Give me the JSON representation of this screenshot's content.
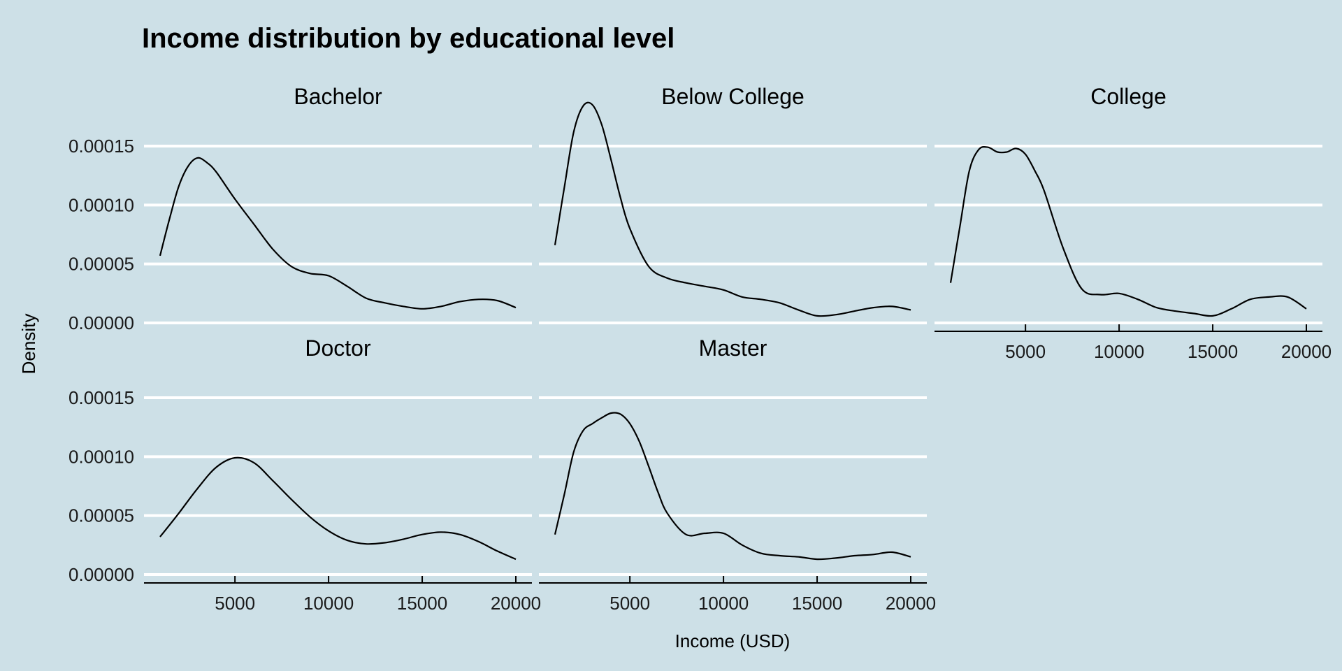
{
  "chart_data": {
    "type": "area",
    "title": "Income distribution by educational level",
    "xlabel": "Income (USD)",
    "ylabel": "Density",
    "background": "#cde0e7",
    "gridline_color": "#ffffff",
    "line_color": "#000000",
    "grid": "horizontal",
    "xlim": [
      1000,
      20000
    ],
    "ylim": [
      0,
      0.000185
    ],
    "x_ticks": [
      5000,
      10000,
      15000,
      20000
    ],
    "y_ticks": [
      0,
      5e-05,
      0.0001,
      0.00015
    ],
    "y_tick_labels": [
      "0.00000",
      "0.00005",
      "0.00010",
      "0.00015"
    ],
    "x_tick_labels": [
      "5000",
      "10000",
      "15000",
      "20000"
    ],
    "panels": [
      {
        "name": "Bachelor",
        "x": [
          1000,
          1500,
          2000,
          2500,
          3000,
          3500,
          4000,
          5000,
          6000,
          7000,
          8000,
          9000,
          10000,
          11000,
          12000,
          13000,
          14000,
          15000,
          16000,
          17000,
          18000,
          19000,
          20000
        ],
        "y": [
          5.7e-05,
          8.8e-05,
          0.000116,
          0.000133,
          0.00014,
          0.000136,
          0.000128,
          0.000105,
          8.4e-05,
          6.3e-05,
          4.8e-05,
          4.2e-05,
          4e-05,
          3.1e-05,
          2.1e-05,
          1.7e-05,
          1.4e-05,
          1.2e-05,
          1.4e-05,
          1.8e-05,
          2e-05,
          1.9e-05,
          1.3e-05
        ]
      },
      {
        "name": "Below College",
        "x": [
          1000,
          1500,
          2000,
          2500,
          3000,
          3500,
          4000,
          4500,
          5000,
          6000,
          7000,
          8000,
          9000,
          10000,
          11000,
          12000,
          13000,
          14000,
          15000,
          16000,
          17000,
          18000,
          19000,
          20000
        ],
        "y": [
          6.6e-05,
          0.000115,
          0.000162,
          0.000184,
          0.000185,
          0.000168,
          0.000138,
          0.000106,
          8e-05,
          4.8e-05,
          3.8e-05,
          3.4e-05,
          3.1e-05,
          2.8e-05,
          2.2e-05,
          2e-05,
          1.7e-05,
          1.1e-05,
          6e-06,
          7e-06,
          1e-05,
          1.3e-05,
          1.4e-05,
          1.1e-05
        ]
      },
      {
        "name": "College",
        "x": [
          1000,
          1500,
          2000,
          2500,
          3000,
          3500,
          4000,
          4500,
          5000,
          5500,
          6000,
          7000,
          8000,
          9000,
          10000,
          11000,
          12000,
          13000,
          14000,
          15000,
          16000,
          17000,
          18000,
          19000,
          20000
        ],
        "y": [
          3.4e-05,
          8.2e-05,
          0.000129,
          0.000147,
          0.000149,
          0.000145,
          0.000145,
          0.000148,
          0.000143,
          0.000129,
          0.000112,
          6.4e-05,
          2.9e-05,
          2.4e-05,
          2.5e-05,
          2e-05,
          1.3e-05,
          1e-05,
          8e-06,
          6e-06,
          1.2e-05,
          2e-05,
          2.2e-05,
          2.2e-05,
          1.2e-05
        ]
      },
      {
        "name": "Doctor",
        "x": [
          1000,
          2000,
          3000,
          4000,
          5000,
          6000,
          7000,
          8000,
          9000,
          10000,
          11000,
          12000,
          13000,
          14000,
          15000,
          16000,
          17000,
          18000,
          19000,
          20000
        ],
        "y": [
          3.2e-05,
          5.2e-05,
          7.3e-05,
          9.1e-05,
          9.9e-05,
          9.5e-05,
          8e-05,
          6.4e-05,
          4.9e-05,
          3.7e-05,
          2.9e-05,
          2.6e-05,
          2.7e-05,
          3e-05,
          3.4e-05,
          3.6e-05,
          3.4e-05,
          2.8e-05,
          2e-05,
          1.3e-05
        ]
      },
      {
        "name": "Master",
        "x": [
          1000,
          1500,
          2000,
          2500,
          3000,
          3500,
          4000,
          4500,
          5000,
          5500,
          6000,
          6500,
          7000,
          8000,
          9000,
          10000,
          11000,
          12000,
          13000,
          14000,
          15000,
          16000,
          17000,
          18000,
          19000,
          20000
        ],
        "y": [
          3.4e-05,
          6.8e-05,
          0.000104,
          0.000122,
          0.000128,
          0.000133,
          0.000137,
          0.000136,
          0.000128,
          0.000113,
          9.2e-05,
          7e-05,
          5.2e-05,
          3.4e-05,
          3.5e-05,
          3.5e-05,
          2.5e-05,
          1.8e-05,
          1.6e-05,
          1.5e-05,
          1.3e-05,
          1.4e-05,
          1.6e-05,
          1.7e-05,
          1.9e-05,
          1.5e-05
        ]
      }
    ]
  }
}
